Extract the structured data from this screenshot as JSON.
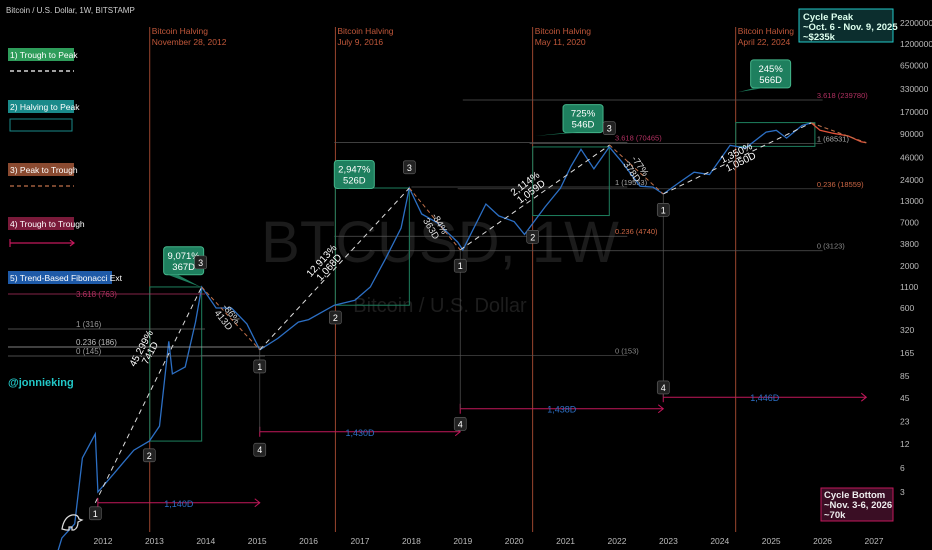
{
  "header": {
    "symbol_line": "Bitcoin / U.S. Dollar, 1W, BITSTAMP"
  },
  "watermark": {
    "ticker": "BTCUSD, 1W",
    "name": "Bitcoin / U.S. Dollar"
  },
  "author": "@jonnieking",
  "legend": [
    {
      "label": "1) Trough to Peak",
      "color": "#2e9c5a",
      "sample": "dashed-white"
    },
    {
      "label": "2) Halving to Peak",
      "color": "#1a8a8a",
      "sample": "box-teal"
    },
    {
      "label": "3) Peak to Trough",
      "color": "#c0704a",
      "sample": "dashed-orange"
    },
    {
      "label": "4) Trough to Trough",
      "color": "#c2185b",
      "sample": "arrow-magenta"
    },
    {
      "label": "5) Trend-Based Fibonacci Ext",
      "color": "#1e5aa8",
      "sample": "none"
    }
  ],
  "fib_left": [
    {
      "label": "3.618 (763)",
      "color": "#b03060"
    },
    {
      "label": "1 (316)",
      "color": "#888888"
    },
    {
      "label": "0.236 (186)",
      "color": "#bbbbbb"
    },
    {
      "label": "0 (145)",
      "color": "#888888"
    }
  ],
  "colors": {
    "price": "#2c6fc4",
    "halving": "#c0573a",
    "bg": "#000000",
    "teal": "#1e7f5e",
    "magenta": "#c2185b",
    "proj": "#e0523a"
  },
  "chart_data": {
    "type": "line",
    "y_scale": "log",
    "y_ticks": [
      3,
      6,
      12,
      23,
      45,
      85,
      165,
      320,
      600,
      1100,
      2000,
      3800,
      7000,
      13000,
      24000,
      46000,
      90000,
      170000,
      330000,
      650000,
      1200000,
      2200000
    ],
    "x_ticks": [
      "2012",
      "2013",
      "2014",
      "2015",
      "2016",
      "2017",
      "2018",
      "2019",
      "2020",
      "2021",
      "2022",
      "2023",
      "2024",
      "2025",
      "2026",
      "2027"
    ],
    "series": [
      {
        "x": [
          2011.0,
          2011.2,
          2011.45,
          2011.6,
          2011.85,
          2011.9,
          2012.2,
          2012.6,
          2012.9,
          2013.1,
          2013.28,
          2013.35,
          2013.6,
          2013.8,
          2013.92,
          2014.2,
          2014.5,
          2014.8,
          2015.05,
          2015.4,
          2015.8,
          2016.0,
          2016.5,
          2016.9,
          2017.2,
          2017.5,
          2017.8,
          2017.96,
          2018.2,
          2018.5,
          2018.9,
          2019.0,
          2019.45,
          2019.7,
          2020.0,
          2020.2,
          2020.6,
          2020.9,
          2021.1,
          2021.3,
          2021.55,
          2021.85,
          2022.1,
          2022.45,
          2022.7,
          2022.9,
          2023.2,
          2023.5,
          2023.8,
          2024.2,
          2024.5,
          2024.9,
          2025.1,
          2025.3,
          2025.6,
          2025.78
        ],
        "y": [
          0.3,
          0.8,
          1.2,
          8,
          16,
          3,
          5,
          10,
          13,
          20,
          230,
          90,
          110,
          400,
          1100,
          600,
          600,
          380,
          180,
          250,
          400,
          430,
          650,
          750,
          1100,
          2500,
          6000,
          19000,
          9000,
          7000,
          4000,
          3200,
          12000,
          8500,
          7200,
          5000,
          11000,
          19000,
          35000,
          58000,
          33000,
          62000,
          40000,
          20000,
          19500,
          16000,
          22000,
          30000,
          28000,
          65000,
          60000,
          95000,
          100000,
          80000,
          115000,
          124000
        ]
      },
      {
        "name": "projection",
        "x": [
          2025.78,
          2025.95,
          2026.2,
          2026.5,
          2026.75,
          2026.85
        ],
        "y": [
          124000,
          100000,
          92000,
          85000,
          72000,
          70000
        ]
      }
    ],
    "halvings": [
      {
        "x": 2012.91,
        "title": "Bitcoin Halving",
        "date": "November 28, 2012"
      },
      {
        "x": 2016.52,
        "title": "Bitcoin Halving",
        "date": "July 9, 2016"
      },
      {
        "x": 2020.36,
        "title": "Bitcoin Halving",
        "date": "May 11, 2020"
      },
      {
        "x": 2024.31,
        "title": "Bitcoin Halving",
        "date": "April 22, 2024"
      }
    ],
    "cycle_callouts": [
      {
        "pct": "9,071%",
        "days": "367D"
      },
      {
        "pct": "2,947%",
        "days": "526D"
      },
      {
        "pct": "725%",
        "days": "546D"
      },
      {
        "pct": "245%",
        "days": "566D"
      }
    ],
    "trough_to_peak_labels": [
      {
        "pct": "45,299%",
        "days": "741D"
      },
      {
        "pct": "12,913%",
        "days": "1,068D"
      },
      {
        "pct": "2,114%",
        "days": "1,059D"
      },
      {
        "pct": "1,350%",
        "days": "1,050D"
      }
    ],
    "peak_to_trough_labels": [
      {
        "pct": "-86%",
        "days": "413D"
      },
      {
        "pct": "-84%",
        "days": "363D"
      },
      {
        "pct": "-77%",
        "days": "378D"
      }
    ],
    "trough_spans": [
      {
        "days": "1,140D"
      },
      {
        "days": "1,430D"
      },
      {
        "days": "1,438D"
      },
      {
        "days": "1,446D"
      }
    ],
    "fib_levels": [
      {
        "label": "3.618 (70465)",
        "color": "#b03060"
      },
      {
        "label": "1 (19553)",
        "color": "#aaaaaa"
      },
      {
        "label": "0.236 (4740)",
        "color": "#cc6644"
      },
      {
        "label": "0 (153)",
        "color": "#888888"
      },
      {
        "label": "3.618 (239780)",
        "color": "#b03060"
      },
      {
        "label": "1 (68531)",
        "color": "#aaaaaa"
      },
      {
        "label": "0.236 (18559)",
        "color": "#cc6644"
      },
      {
        "label": "0 (3123)",
        "color": "#888888"
      }
    ],
    "points": [
      {
        "label": "1"
      },
      {
        "label": "2"
      },
      {
        "label": "3"
      },
      {
        "label": "1"
      },
      {
        "label": "2"
      },
      {
        "label": "3"
      },
      {
        "label": "1"
      },
      {
        "label": "2"
      },
      {
        "label": "3"
      },
      {
        "label": "1"
      },
      {
        "label": "4"
      },
      {
        "label": "4"
      },
      {
        "label": "4"
      }
    ]
  },
  "cycle_peak": {
    "title": "Cycle Peak",
    "line1": "~Oct. 6 - Nov. 9, 2025",
    "line2": "~$235k"
  },
  "cycle_bottom": {
    "title": "Cycle Bottom",
    "line1": "~Nov. 3-6, 2026",
    "line2": "~70k"
  }
}
